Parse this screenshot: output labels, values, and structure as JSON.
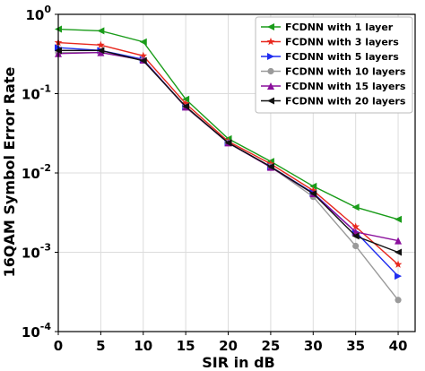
{
  "chart_data": {
    "type": "line",
    "xlabel": "SIR in dB",
    "ylabel": "16QAM Symbol Error Rate",
    "x": [
      0,
      5,
      10,
      15,
      20,
      25,
      30,
      35,
      40
    ],
    "xlim": [
      0,
      42
    ],
    "ylim": [
      0.0001,
      1
    ],
    "yscale": "log",
    "grid": true,
    "legend_position": "top-right",
    "x_ticks": [
      "0",
      "5",
      "10",
      "15",
      "20",
      "25",
      "30",
      "35",
      "40"
    ],
    "y_ticks": [
      {
        "base": "10",
        "exp": "-4",
        "value": 0.0001
      },
      {
        "base": "10",
        "exp": "-3",
        "value": 0.001
      },
      {
        "base": "10",
        "exp": "-2",
        "value": 0.01
      },
      {
        "base": "10",
        "exp": "-1",
        "value": 0.1
      },
      {
        "base": "10",
        "exp": "0",
        "value": 1
      }
    ],
    "series": [
      {
        "name": "FCDNN with 1 layer",
        "color": "#1a9c1a",
        "marker": "triangle-left",
        "values": [
          0.65,
          0.62,
          0.45,
          0.085,
          0.027,
          0.014,
          0.0068,
          0.0037,
          0.0026
        ]
      },
      {
        "name": "FCDNN with 3 layers",
        "color": "#e8281e",
        "marker": "star",
        "values": [
          0.44,
          0.41,
          0.3,
          0.075,
          0.025,
          0.013,
          0.006,
          0.0021,
          0.0007
        ]
      },
      {
        "name": "FCDNN with 5 layers",
        "color": "#1f2cf0",
        "marker": "triangle-right",
        "values": [
          0.38,
          0.35,
          0.27,
          0.068,
          0.024,
          0.012,
          0.0056,
          0.0018,
          0.0005
        ]
      },
      {
        "name": "FCDNN with 10 layers",
        "color": "#9a9a9a",
        "marker": "circle",
        "values": [
          0.33,
          0.33,
          0.265,
          0.067,
          0.024,
          0.012,
          0.005,
          0.0012,
          0.00025
        ]
      },
      {
        "name": "FCDNN with 15 layers",
        "color": "#8a0f9c",
        "marker": "triangle-up",
        "values": [
          0.32,
          0.33,
          0.265,
          0.068,
          0.024,
          0.0118,
          0.0055,
          0.0018,
          0.0014
        ]
      },
      {
        "name": "FCDNN with 20 layers",
        "color": "#111111",
        "marker": "triangle-left",
        "values": [
          0.35,
          0.35,
          0.26,
          0.069,
          0.024,
          0.012,
          0.0055,
          0.0016,
          0.001
        ]
      }
    ]
  }
}
